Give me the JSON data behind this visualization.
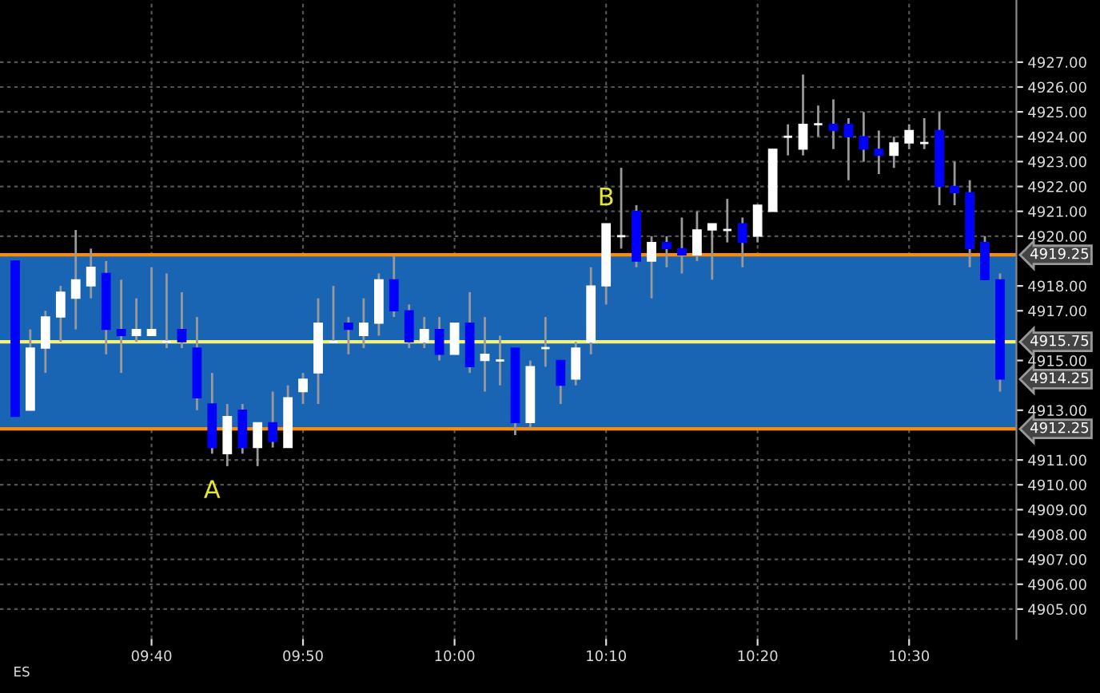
{
  "chart_data": {
    "type": "candlestick",
    "x": [
      9.5167,
      9.5333,
      9.55,
      9.5667,
      9.5833,
      9.6,
      9.6167,
      9.6333,
      9.65,
      9.6667,
      9.6833,
      9.7,
      9.7167,
      9.7333,
      9.75,
      9.7667,
      9.7833,
      9.8,
      9.8167,
      9.8333,
      9.85,
      9.8667,
      9.8833,
      9.9,
      9.9167,
      9.9333,
      9.95,
      9.9667,
      9.9833,
      10.0,
      10.0167,
      10.0333,
      10.05,
      10.0667,
      10.0833,
      10.1,
      10.1167,
      10.1333,
      10.15,
      10.1667,
      10.1833,
      10.2,
      10.2167,
      10.2333,
      10.25,
      10.2667,
      10.2833,
      10.3,
      10.3167,
      10.3333,
      10.35,
      10.3667,
      10.3833,
      10.4,
      10.4167,
      10.4333,
      10.45,
      10.4667,
      10.4833,
      10.5,
      10.5167,
      10.5333,
      10.55,
      10.5667,
      10.5833,
      10.6
    ],
    "ohlc": [
      [
        4919.0,
        4919.0,
        4912.75,
        4912.75
      ],
      [
        4913.0,
        4916.25,
        4913.0,
        4915.5
      ],
      [
        4915.5,
        4917.0,
        4914.5,
        4916.75
      ],
      [
        4916.75,
        4918.0,
        4915.75,
        4917.75
      ],
      [
        4917.5,
        4920.25,
        4916.25,
        4918.25
      ],
      [
        4918.0,
        4919.5,
        4917.5,
        4918.75
      ],
      [
        4918.5,
        4919.0,
        4915.25,
        4916.25
      ],
      [
        4916.25,
        4918.25,
        4914.5,
        4916.0
      ],
      [
        4916.0,
        4917.5,
        4915.75,
        4916.25
      ],
      [
        4916.0,
        4918.75,
        4916.0,
        4916.25
      ],
      [
        4915.75,
        4918.5,
        4915.5,
        4915.75
      ],
      [
        4916.25,
        4917.75,
        4915.5,
        4915.75
      ],
      [
        4915.5,
        4916.75,
        4913.0,
        4913.5
      ],
      [
        4913.25,
        4914.5,
        4911.25,
        4911.5
      ],
      [
        4911.25,
        4913.25,
        4910.75,
        4912.75
      ],
      [
        4913.0,
        4913.25,
        4911.25,
        4911.5
      ],
      [
        4911.5,
        4912.5,
        4910.75,
        4912.5
      ],
      [
        4912.5,
        4913.75,
        4911.5,
        4911.75
      ],
      [
        4911.5,
        4914.0,
        4911.5,
        4913.5
      ],
      [
        4913.75,
        4914.5,
        4913.25,
        4914.25
      ],
      [
        4914.5,
        4917.5,
        4913.25,
        4916.5
      ],
      [
        4915.75,
        4918.0,
        4915.75,
        4915.75
      ],
      [
        4916.5,
        4916.75,
        4915.25,
        4916.25
      ],
      [
        4916.0,
        4917.5,
        4915.5,
        4916.5
      ],
      [
        4916.5,
        4918.5,
        4916.0,
        4918.25
      ],
      [
        4918.25,
        4919.25,
        4916.75,
        4917.0
      ],
      [
        4917.0,
        4917.25,
        4915.5,
        4915.75
      ],
      [
        4915.75,
        4916.75,
        4915.5,
        4916.25
      ],
      [
        4916.25,
        4916.75,
        4915.0,
        4915.25
      ],
      [
        4915.25,
        4916.5,
        4915.25,
        4916.5
      ],
      [
        4916.5,
        4917.75,
        4914.5,
        4914.75
      ],
      [
        4915.0,
        4916.75,
        4913.75,
        4915.25
      ],
      [
        4915.0,
        4916.0,
        4914.0,
        4915.0
      ],
      [
        4915.5,
        4915.5,
        4912.0,
        4912.5
      ],
      [
        4912.5,
        4915.0,
        4912.25,
        4914.75
      ],
      [
        4915.5,
        4916.75,
        4914.75,
        4915.5
      ],
      [
        4915.0,
        4915.0,
        4913.25,
        4914.0
      ],
      [
        4914.25,
        4915.75,
        4914.0,
        4915.5
      ],
      [
        4915.75,
        4918.75,
        4915.25,
        4918.0
      ],
      [
        4918.0,
        4920.5,
        4917.25,
        4920.5
      ],
      [
        4920.0,
        4922.75,
        4919.5,
        4920.0
      ],
      [
        4921.0,
        4921.25,
        4918.75,
        4919.0
      ],
      [
        4919.0,
        4920.0,
        4917.5,
        4919.75
      ],
      [
        4919.75,
        4920.0,
        4918.75,
        4919.5
      ],
      [
        4919.5,
        4920.75,
        4918.5,
        4919.25
      ],
      [
        4919.25,
        4921.0,
        4919.0,
        4920.25
      ],
      [
        4920.25,
        4920.5,
        4918.25,
        4920.5
      ],
      [
        4920.25,
        4921.5,
        4919.75,
        4920.25
      ],
      [
        4920.5,
        4920.75,
        4918.75,
        4919.75
      ],
      [
        4920.0,
        4921.25,
        4919.75,
        4921.25
      ],
      [
        4921.0,
        4923.5,
        4921.0,
        4923.5
      ],
      [
        4924.0,
        4924.5,
        4923.25,
        4924.0
      ],
      [
        4923.5,
        4926.5,
        4923.25,
        4924.5
      ],
      [
        4924.5,
        4925.25,
        4924.0,
        4924.5
      ],
      [
        4924.5,
        4925.5,
        4923.5,
        4924.25
      ],
      [
        4924.5,
        4924.75,
        4922.25,
        4924.0
      ],
      [
        4924.0,
        4925.0,
        4923.0,
        4923.5
      ],
      [
        4923.5,
        4924.25,
        4922.5,
        4923.25
      ],
      [
        4923.25,
        4924.0,
        4922.75,
        4923.75
      ],
      [
        4923.75,
        4924.5,
        4923.5,
        4924.25
      ],
      [
        4923.75,
        4924.75,
        4923.5,
        4923.75
      ],
      [
        4924.25,
        4925.0,
        4921.25,
        4922.0
      ],
      [
        4922.0,
        4923.0,
        4921.25,
        4921.75
      ],
      [
        4921.75,
        4922.25,
        4918.75,
        4919.5
      ],
      [
        4919.75,
        4920.0,
        4918.25,
        4918.25
      ],
      [
        4918.25,
        4918.5,
        4913.75,
        4914.25
      ]
    ],
    "colors": [
      "#0000ff",
      "#ffffff",
      "#ffffff",
      "#ffffff",
      "#ffffff",
      "#ffffff",
      "#0000ff",
      "#0000ff",
      "#ffffff",
      "#ffffff",
      "#ffffff",
      "#0000ff",
      "#0000ff",
      "#0000ff",
      "#ffffff",
      "#0000ff",
      "#ffffff",
      "#0000ff",
      "#ffffff",
      "#ffffff",
      "#ffffff",
      "#ffffff",
      "#0000ff",
      "#ffffff",
      "#ffffff",
      "#0000ff",
      "#0000ff",
      "#ffffff",
      "#0000ff",
      "#ffffff",
      "#0000ff",
      "#ffffff",
      "#ffffff",
      "#0000ff",
      "#ffffff",
      "#ffffff",
      "#0000ff",
      "#ffffff",
      "#ffffff",
      "#ffffff",
      "#ffffff",
      "#0000ff",
      "#ffffff",
      "#0000ff",
      "#0000ff",
      "#ffffff",
      "#ffffff",
      "#ffffff",
      "#0000ff",
      "#ffffff",
      "#ffffff",
      "#ffffff",
      "#ffffff",
      "#ffffff",
      "#0000ff",
      "#0000ff",
      "#0000ff",
      "#0000ff",
      "#ffffff",
      "#ffffff",
      "#ffffff",
      "#0000ff",
      "#0000ff",
      "#0000ff",
      "#0000ff",
      "#0000ff"
    ],
    "xlim": [
      9.5,
      10.618
    ],
    "xticks": [
      {
        "value": 9.6667,
        "label": "09:40"
      },
      {
        "value": 9.8333,
        "label": "09:50"
      },
      {
        "value": 10.0,
        "label": "10:00"
      },
      {
        "value": 10.1667,
        "label": "10:10"
      },
      {
        "value": 10.3333,
        "label": "10:20"
      },
      {
        "value": 10.5,
        "label": "10:30"
      }
    ],
    "ylim": [
      4903.8,
      4929.5
    ],
    "yticks": [
      {
        "value": 4905,
        "label": "4905.00"
      },
      {
        "value": 4906,
        "label": "4906.00"
      },
      {
        "value": 4907,
        "label": "4907.00"
      },
      {
        "value": 4908,
        "label": "4908.00"
      },
      {
        "value": 4909,
        "label": "4909.00"
      },
      {
        "value": 4910,
        "label": "4910.00"
      },
      {
        "value": 4911,
        "label": "4911.00"
      },
      {
        "value": 4913,
        "label": "4913.00"
      },
      {
        "value": 4915,
        "label": "4915.00"
      },
      {
        "value": 4917,
        "label": "4917.00"
      },
      {
        "value": 4918,
        "label": "4918.00"
      },
      {
        "value": 4920,
        "label": "4920.00"
      },
      {
        "value": 4921,
        "label": "4921.00"
      },
      {
        "value": 4922,
        "label": "4922.00"
      },
      {
        "value": 4923,
        "label": "4923.00"
      },
      {
        "value": 4924,
        "label": "4924.00"
      },
      {
        "value": 4925,
        "label": "4925.00"
      },
      {
        "value": 4926,
        "label": "4926.00"
      },
      {
        "value": 4927,
        "label": "4927.00"
      }
    ],
    "bands": [
      {
        "axis": "y",
        "from": 4912.25,
        "to": 4919.25,
        "color": "#1a64b4"
      }
    ],
    "ref_lines": [
      {
        "axis": "y",
        "value": 4919.25,
        "label": "4919.25",
        "color": "#ff8c00"
      },
      {
        "axis": "y",
        "value": 4912.25,
        "label": "4912.25",
        "color": "#ff8c00"
      },
      {
        "axis": "y",
        "value": 4915.75,
        "label": "4915.75",
        "color": "#f2f27a"
      }
    ],
    "annotations": [
      "A",
      "B",
      {
        "text": "4914.25",
        "x": 10.6,
        "y": 4914.25
      },
      "ES"
    ],
    "grid": true,
    "legend": false
  }
}
